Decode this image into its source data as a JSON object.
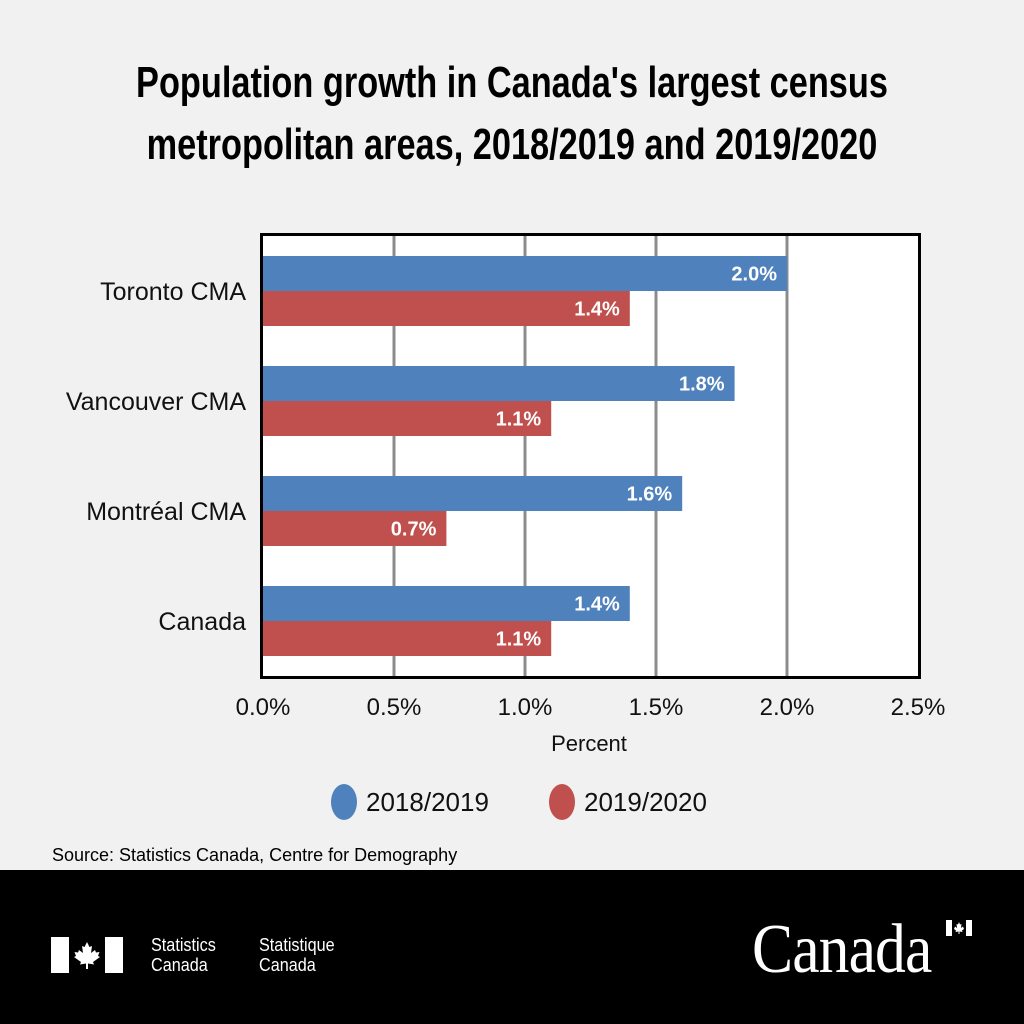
{
  "chart_data": {
    "type": "bar",
    "orientation": "horizontal",
    "title": "Population growth in Canada's largest census metropolitan areas, 2018/2019 and 2019/2020",
    "title_lines": [
      "Population growth in Canada's largest census",
      "metropolitan areas, 2018/2019 and 2019/2020"
    ],
    "categories": [
      "Toronto CMA",
      "Vancouver CMA",
      "Montréal CMA",
      "Canada"
    ],
    "series": [
      {
        "name": "2018/2019",
        "color": "#4f81bd",
        "values": [
          2.0,
          1.8,
          1.6,
          1.4
        ],
        "labels": [
          "2.0%",
          "1.8%",
          "1.6%",
          "1.4%"
        ]
      },
      {
        "name": "2019/2020",
        "color": "#c0504d",
        "values": [
          1.4,
          1.1,
          0.7,
          1.1
        ],
        "labels": [
          "1.4%",
          "1.1%",
          "0.7%",
          "1.1%"
        ]
      }
    ],
    "xlabel": "Percent",
    "ylabel": "",
    "xlim": [
      0,
      2.5
    ],
    "xticks": [
      0,
      0.5,
      1.0,
      1.5,
      2.0,
      2.5
    ],
    "xtick_labels": [
      "0.0%",
      "0.5%",
      "1.0%",
      "1.5%",
      "2.0%",
      "2.5%"
    ],
    "grid": true,
    "legend_position": "bottom-center"
  },
  "source": "Source: Statistics Canada, Centre for Demography",
  "footer": {
    "agency_en_line1": "Statistics",
    "agency_en_line2": "Canada",
    "agency_fr_line1": "Statistique",
    "agency_fr_line2": "Canada",
    "wordmark": "Canada"
  },
  "icons": {
    "agency_logo": "canada-flag-icon",
    "wordmark_flag": "canada-flag-icon"
  }
}
